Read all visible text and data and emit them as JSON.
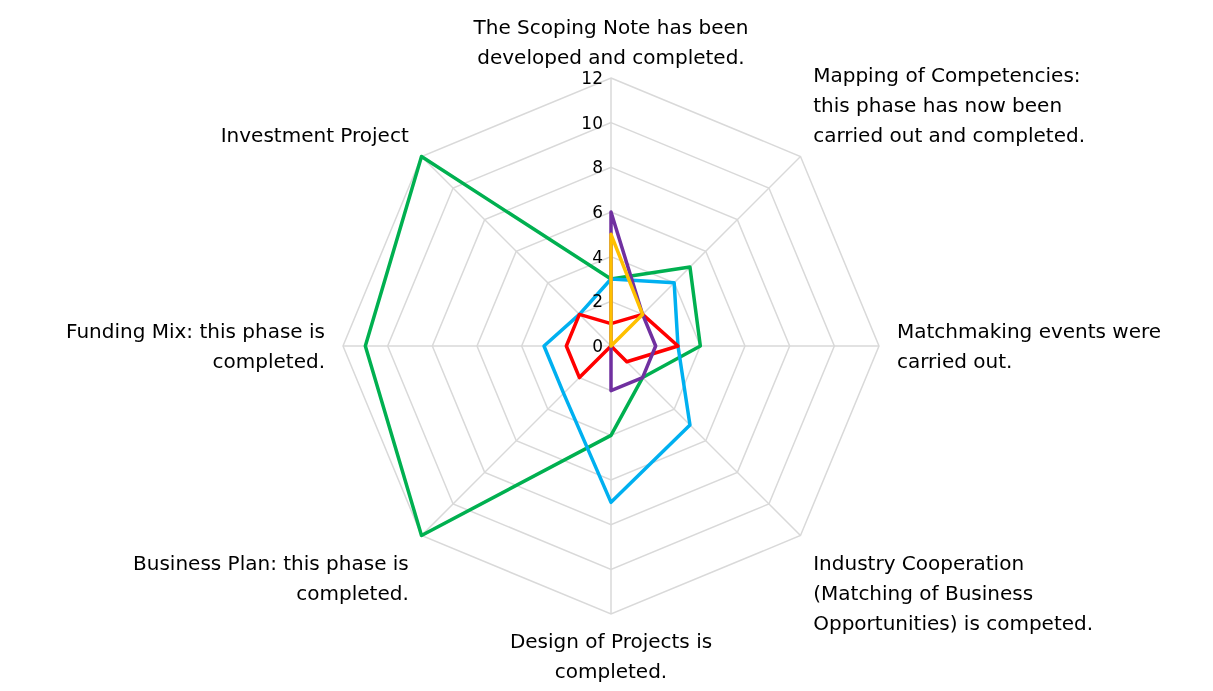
{
  "chart_data": {
    "type": "radar",
    "categories": [
      "The Scoping Note has been developed and completed.",
      "Mapping of Competencies: this phase has now been carried out and completed.",
      "Matchmaking events were carried out.",
      "Industry Cooperation (Matching of Business Opportunities) is competed.",
      "Design of Projects is completed.",
      "Business Plan: this phase is completed.",
      "Funding Mix: this phase is completed.",
      "Investment Project"
    ],
    "series": [
      {
        "color": "#00b050",
        "values": [
          3,
          5,
          4,
          2,
          4,
          12,
          11,
          12
        ]
      },
      {
        "color": "#00b0f0",
        "values": [
          3,
          4,
          3,
          5,
          7,
          3,
          3,
          2
        ]
      },
      {
        "color": "#ff0000",
        "values": [
          1,
          2,
          3,
          1,
          0,
          2,
          2,
          2
        ]
      },
      {
        "color": "#7030a0",
        "values": [
          6,
          2,
          2,
          2,
          2,
          0,
          0,
          0
        ]
      },
      {
        "color": "#ffc000",
        "values": [
          5,
          2,
          0,
          0,
          0,
          0,
          0,
          0
        ]
      }
    ],
    "ylim": [
      0,
      12
    ],
    "yticks": [
      0,
      2,
      4,
      6,
      8,
      10,
      12
    ],
    "grid": true
  }
}
